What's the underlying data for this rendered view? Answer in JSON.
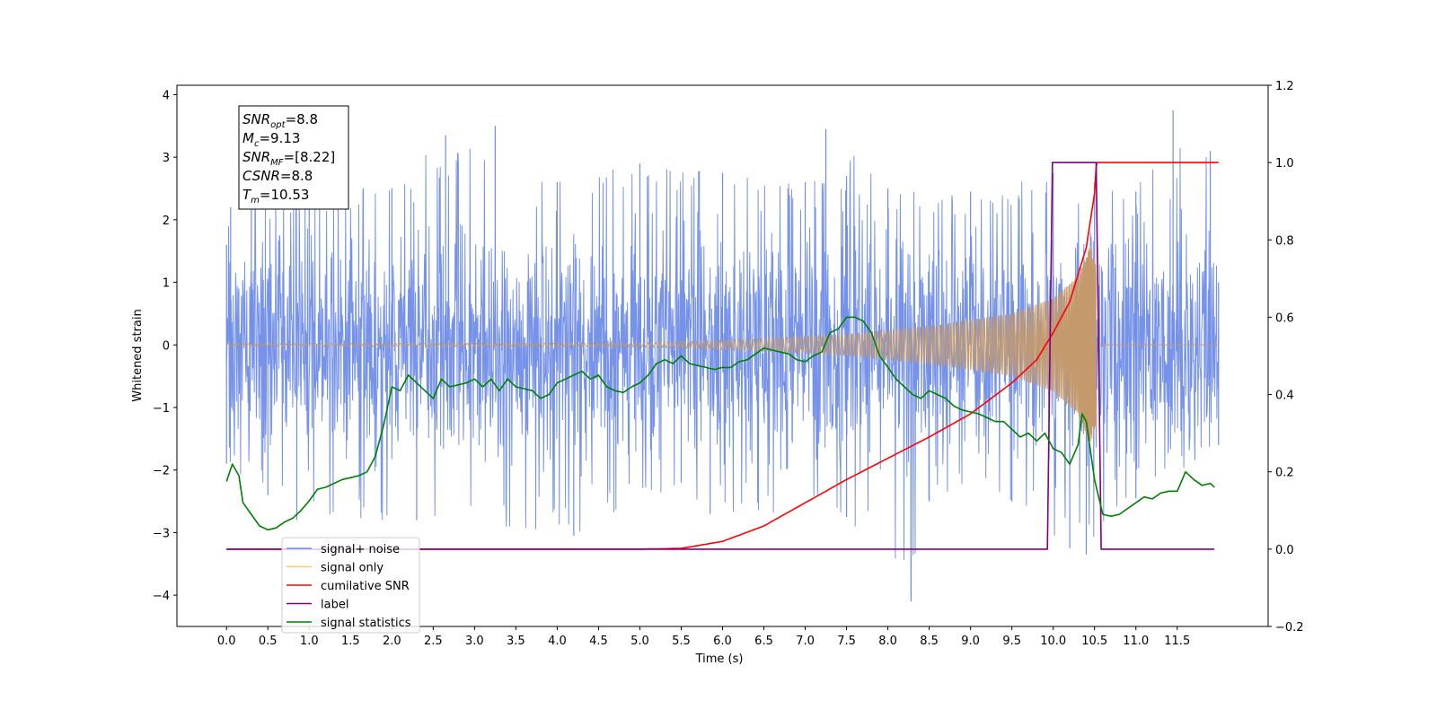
{
  "chart_data": {
    "type": "line",
    "xlabel": "Time (s)",
    "ylabel": "Whitened strain",
    "xlim": [
      -0.6,
      12.6
    ],
    "ylim": [
      -4.5,
      4.15
    ],
    "y2lim": [
      -0.2,
      1.2
    ],
    "x_ticks": [
      0.0,
      0.5,
      1.0,
      1.5,
      2.0,
      2.5,
      3.0,
      3.5,
      4.0,
      4.5,
      5.0,
      5.5,
      6.0,
      6.5,
      7.0,
      7.5,
      8.0,
      8.5,
      9.0,
      9.5,
      10.0,
      10.5,
      11.0,
      11.5
    ],
    "x_tick_labels": [
      "0.0",
      "0.5",
      "1.0",
      "1.5",
      "2.0",
      "2.5",
      "3.0",
      "3.5",
      "4.0",
      "4.5",
      "5.0",
      "5.5",
      "6.0",
      "6.5",
      "7.0",
      "7.5",
      "8.0",
      "8.5",
      "9.0",
      "9.5",
      "10.0",
      "10.5",
      "11.0",
      "11.5"
    ],
    "y_ticks": [
      -4,
      -3,
      -2,
      -1,
      0,
      1,
      2,
      3,
      4
    ],
    "y_tick_labels": [
      "−4",
      "−3",
      "−2",
      "−1",
      "0",
      "1",
      "2",
      "3",
      "4"
    ],
    "y2_ticks": [
      -0.2,
      0.0,
      0.2,
      0.4,
      0.6,
      0.8,
      1.0,
      1.2
    ],
    "y2_tick_labels": [
      "−0.2",
      "0.0",
      "0.2",
      "0.4",
      "0.6",
      "0.8",
      "1.0",
      "1.2"
    ],
    "grid": false,
    "legend_position": "bottom-left",
    "info_box": {
      "lines": [
        {
          "base": "SNR",
          "sub": "opt",
          "value": "=8.8"
        },
        {
          "base": "M",
          "sub": "c",
          "value": "=9.13"
        },
        {
          "base": "SNR",
          "sub": "MF",
          "value": "=[8.22]"
        },
        {
          "base": "CSNR",
          "sub": "",
          "value": "=8.8"
        },
        {
          "base": "T",
          "sub": "m",
          "value": "=10.53"
        }
      ]
    },
    "legend": [
      {
        "label": "signal+ noise",
        "color": "#6f8de8"
      },
      {
        "label": "signal only",
        "color": "#ffc76b"
      },
      {
        "label": "cumilative SNR",
        "color": "#ff0000"
      },
      {
        "label": "label",
        "color": "#800080"
      },
      {
        "label": "signal statistics",
        "color": "#008000"
      }
    ],
    "series": [
      {
        "name": "signal+ noise",
        "axis": "left",
        "color": "#6f8de8",
        "x_start": 0.0,
        "x_end": 12.0,
        "noise_std": 0.95,
        "envelope_upper_points": [
          [
            0.0,
            1.6
          ],
          [
            0.05,
            2.2
          ],
          [
            0.3,
            2.45
          ],
          [
            1.0,
            2.5
          ],
          [
            2.0,
            2.5
          ],
          [
            2.65,
            3.35
          ],
          [
            3.25,
            3.5
          ],
          [
            4.0,
            2.6
          ],
          [
            5.0,
            2.9
          ],
          [
            6.0,
            2.75
          ],
          [
            7.0,
            2.6
          ],
          [
            7.5,
            2.7
          ],
          [
            7.25,
            3.45
          ],
          [
            8.0,
            2.5
          ],
          [
            9.0,
            2.45
          ],
          [
            10.0,
            2.75
          ],
          [
            10.5,
            2.6
          ],
          [
            11.0,
            2.45
          ],
          [
            11.45,
            3.75
          ],
          [
            11.9,
            3.1
          ],
          [
            12.0,
            1.0
          ]
        ],
        "envelope_lower_points": [
          [
            0.0,
            -1.9
          ],
          [
            0.5,
            -2.4
          ],
          [
            0.85,
            -2.8
          ],
          [
            2.3,
            -2.8
          ],
          [
            4.2,
            -3.05
          ],
          [
            5.5,
            -2.2
          ],
          [
            5.85,
            -2.7
          ],
          [
            7.5,
            -2.75
          ],
          [
            8.28,
            -4.1
          ],
          [
            8.5,
            -2.5
          ],
          [
            9.5,
            -2.5
          ],
          [
            10.2,
            -3.25
          ],
          [
            10.4,
            -3.35
          ],
          [
            11.0,
            -2.45
          ],
          [
            12.0,
            -1.6
          ]
        ]
      },
      {
        "name": "signal only",
        "axis": "left",
        "color": "#c49a6c",
        "x_start": 0.0,
        "x_end": 12.0,
        "chirp_end": 10.52,
        "amplitude_points": [
          [
            0.0,
            0.02
          ],
          [
            5.0,
            0.03
          ],
          [
            6.5,
            0.1
          ],
          [
            7.5,
            0.17
          ],
          [
            8.5,
            0.3
          ],
          [
            9.5,
            0.5
          ],
          [
            10.0,
            0.75
          ],
          [
            10.3,
            1.1
          ],
          [
            10.45,
            1.6
          ],
          [
            10.52,
            1.3
          ],
          [
            10.55,
            0.02
          ],
          [
            12.0,
            0.02
          ]
        ]
      },
      {
        "name": "cumilative SNR",
        "axis": "right",
        "color": "#ff0000",
        "x": [
          0.0,
          5.0,
          5.5,
          6.0,
          6.5,
          7.0,
          7.5,
          8.0,
          8.5,
          9.0,
          9.5,
          9.8,
          10.0,
          10.2,
          10.4,
          10.5,
          10.52,
          10.53,
          12.0
        ],
        "values": [
          0.0,
          0.0,
          0.002,
          0.02,
          0.06,
          0.12,
          0.18,
          0.235,
          0.29,
          0.35,
          0.43,
          0.49,
          0.56,
          0.64,
          0.78,
          0.92,
          0.99,
          1.0,
          1.0
        ]
      },
      {
        "name": "label",
        "axis": "right",
        "color": "#800080",
        "x": [
          0.0,
          9.93,
          9.99,
          10.52,
          10.58,
          11.95
        ],
        "values": [
          0.0,
          0.0,
          1.0,
          1.0,
          0.0,
          0.0
        ]
      },
      {
        "name": "signal statistics",
        "axis": "right",
        "color": "#008000",
        "x": [
          0.0,
          0.07,
          0.15,
          0.2,
          0.3,
          0.4,
          0.5,
          0.6,
          0.7,
          0.8,
          0.9,
          1.0,
          1.1,
          1.2,
          1.3,
          1.4,
          1.5,
          1.6,
          1.7,
          1.8,
          1.9,
          2.0,
          2.1,
          2.2,
          2.3,
          2.4,
          2.5,
          2.6,
          2.7,
          2.8,
          2.9,
          3.0,
          3.1,
          3.2,
          3.3,
          3.4,
          3.5,
          3.6,
          3.7,
          3.8,
          3.9,
          4.0,
          4.1,
          4.2,
          4.3,
          4.4,
          4.5,
          4.6,
          4.7,
          4.8,
          4.9,
          5.0,
          5.1,
          5.2,
          5.3,
          5.4,
          5.5,
          5.6,
          5.7,
          5.8,
          5.9,
          6.0,
          6.1,
          6.2,
          6.3,
          6.4,
          6.5,
          6.6,
          6.7,
          6.8,
          6.9,
          7.0,
          7.1,
          7.2,
          7.3,
          7.4,
          7.5,
          7.6,
          7.7,
          7.8,
          7.9,
          8.0,
          8.1,
          8.2,
          8.3,
          8.4,
          8.5,
          8.6,
          8.7,
          8.8,
          8.9,
          9.0,
          9.1,
          9.2,
          9.3,
          9.4,
          9.5,
          9.6,
          9.7,
          9.8,
          9.9,
          10.0,
          10.1,
          10.2,
          10.3,
          10.35,
          10.4,
          10.5,
          10.6,
          10.7,
          10.8,
          10.9,
          11.0,
          11.1,
          11.2,
          11.3,
          11.4,
          11.5,
          11.6,
          11.7,
          11.8,
          11.9,
          11.95
        ],
        "values": [
          0.175,
          0.22,
          0.19,
          0.12,
          0.09,
          0.06,
          0.05,
          0.055,
          0.07,
          0.08,
          0.1,
          0.125,
          0.155,
          0.16,
          0.17,
          0.18,
          0.185,
          0.19,
          0.2,
          0.24,
          0.32,
          0.42,
          0.41,
          0.45,
          0.43,
          0.41,
          0.39,
          0.44,
          0.42,
          0.425,
          0.43,
          0.44,
          0.42,
          0.44,
          0.41,
          0.44,
          0.42,
          0.415,
          0.41,
          0.39,
          0.4,
          0.43,
          0.44,
          0.45,
          0.46,
          0.44,
          0.45,
          0.42,
          0.41,
          0.405,
          0.42,
          0.43,
          0.45,
          0.48,
          0.49,
          0.48,
          0.5,
          0.48,
          0.475,
          0.47,
          0.465,
          0.47,
          0.47,
          0.485,
          0.49,
          0.505,
          0.52,
          0.515,
          0.51,
          0.505,
          0.49,
          0.485,
          0.5,
          0.51,
          0.56,
          0.57,
          0.6,
          0.6,
          0.59,
          0.56,
          0.5,
          0.47,
          0.44,
          0.42,
          0.4,
          0.39,
          0.41,
          0.4,
          0.39,
          0.37,
          0.36,
          0.355,
          0.35,
          0.34,
          0.33,
          0.33,
          0.31,
          0.29,
          0.3,
          0.28,
          0.3,
          0.26,
          0.25,
          0.22,
          0.27,
          0.35,
          0.33,
          0.18,
          0.09,
          0.085,
          0.09,
          0.105,
          0.12,
          0.135,
          0.13,
          0.145,
          0.15,
          0.15,
          0.2,
          0.18,
          0.165,
          0.17,
          0.16
        ]
      }
    ]
  }
}
